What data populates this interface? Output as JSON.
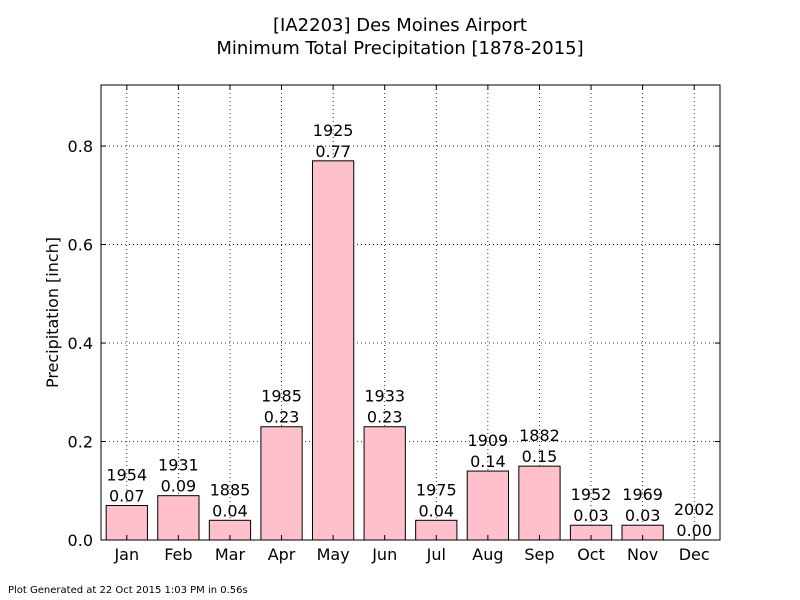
{
  "title_line1": "[IA2203] Des Moines Airport",
  "title_line2": "Minimum Total Precipitation [1878-2015]",
  "footer": "Plot Generated at 22 Oct 2015 1:03 PM in 0.56s",
  "chart_data": {
    "type": "bar",
    "ylabel": "Precipitation [inch]",
    "xlabel": "",
    "ylim": [
      0,
      0.924
    ],
    "yticks": [
      "0.0",
      "0.2",
      "0.4",
      "0.6",
      "0.8"
    ],
    "grid": true,
    "bar_color": "#ffc0cb",
    "categories": [
      "Jan",
      "Feb",
      "Mar",
      "Apr",
      "May",
      "Jun",
      "Jul",
      "Aug",
      "Sep",
      "Oct",
      "Nov",
      "Dec"
    ],
    "values": [
      0.07,
      0.09,
      0.04,
      0.23,
      0.77,
      0.23,
      0.04,
      0.14,
      0.15,
      0.03,
      0.03,
      0.0
    ],
    "value_labels": [
      "0.07",
      "0.09",
      "0.04",
      "0.23",
      "0.77",
      "0.23",
      "0.04",
      "0.14",
      "0.15",
      "0.03",
      "0.03",
      "0.00"
    ],
    "years": [
      "1954",
      "1931",
      "1885",
      "1985",
      "1925",
      "1933",
      "1975",
      "1909",
      "1882",
      "1952",
      "1969",
      "2002"
    ]
  }
}
